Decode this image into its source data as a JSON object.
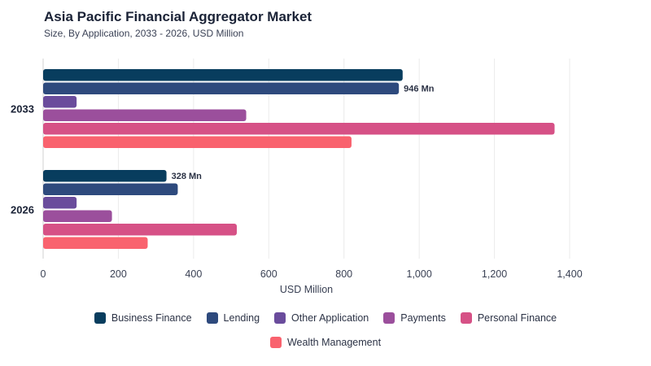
{
  "header": {
    "title": "Asia Pacific Financial Aggregator Market",
    "subtitle": "Size, By Application, 2033 - 2026, USD Million"
  },
  "chart_data": {
    "type": "bar",
    "orientation": "horizontal",
    "categories": [
      "2033",
      "2026"
    ],
    "series": [
      {
        "name": "Business Finance",
        "color": "#083d5e",
        "values": [
          956,
          328
        ]
      },
      {
        "name": "Lending",
        "color": "#2e4a7d",
        "values": [
          946,
          358
        ]
      },
      {
        "name": "Other Application",
        "color": "#6a4c9c",
        "values": [
          89,
          89
        ]
      },
      {
        "name": "Payments",
        "color": "#9b4f9c",
        "values": [
          540,
          183
        ]
      },
      {
        "name": "Personal Finance",
        "color": "#d65186",
        "values": [
          1360,
          515
        ]
      },
      {
        "name": "Wealth Management",
        "color": "#f9626e",
        "values": [
          820,
          278
        ]
      }
    ],
    "data_labels": [
      {
        "category": "2033",
        "series": "Lending",
        "text": "946 Mn"
      },
      {
        "category": "2026",
        "series": "Business Finance",
        "text": "328 Mn"
      }
    ],
    "xlabel": "USD Million",
    "xlim": [
      0,
      1400
    ],
    "xticks": [
      "0",
      "200",
      "400",
      "600",
      "800",
      "1,000",
      "1,200",
      "1,400"
    ],
    "grid": true,
    "legend_position": "bottom"
  }
}
